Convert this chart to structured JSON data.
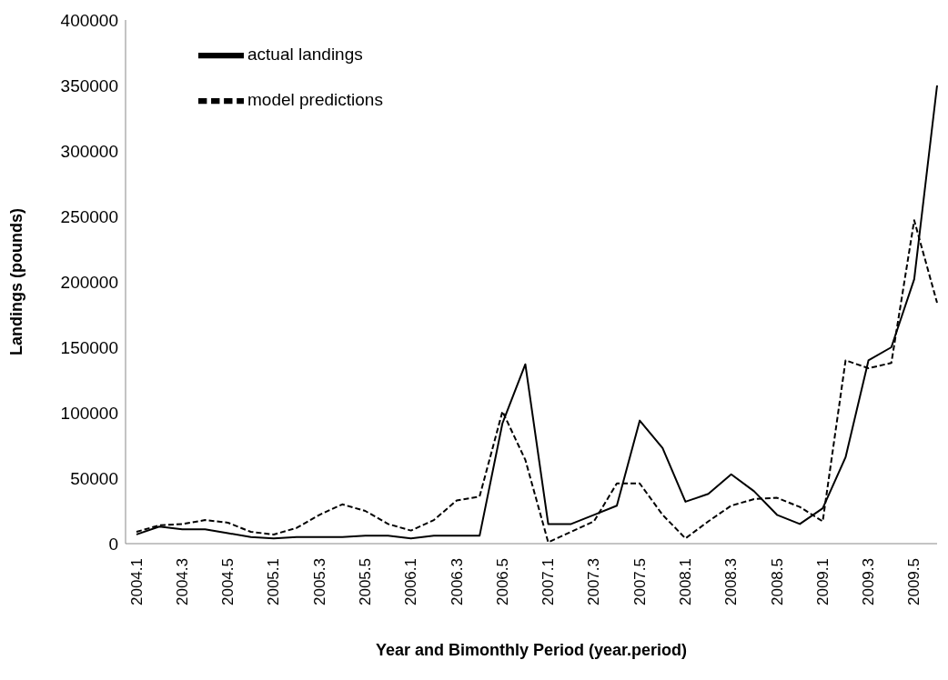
{
  "chart_data": {
    "type": "line",
    "xlabel": "Year and Bimonthly Period (year.period)",
    "ylabel": "Landings (pounds)",
    "categories": [
      "2004.1",
      null,
      "2004.3",
      null,
      "2004.5",
      null,
      "2005.1",
      null,
      "2005.3",
      null,
      "2005.5",
      null,
      "2006.1",
      null,
      "2006.3",
      null,
      "2006.5",
      null,
      "2007.1",
      null,
      "2007.3",
      null,
      "2007.5",
      null,
      "2008.1",
      null,
      "2008.3",
      null,
      "2008.5",
      null,
      "2009.1",
      null,
      "2009.3",
      null,
      "2009.5",
      null
    ],
    "series": [
      {
        "name": "actual landings",
        "color": "#000000",
        "line_style": "solid",
        "values": [
          7000,
          13000,
          11000,
          11000,
          8000,
          5000,
          4000,
          5000,
          5000,
          5000,
          6000,
          6000,
          4000,
          6000,
          6000,
          6000,
          92000,
          137000,
          15000,
          15000,
          22000,
          29000,
          94000,
          73000,
          32000,
          38000,
          53000,
          40000,
          22000,
          15000,
          27000,
          66000,
          140000,
          150000,
          202000,
          350000
        ]
      },
      {
        "name": "model predictions",
        "color": "#000000",
        "line_style": "dashed",
        "values": [
          9000,
          14000,
          15000,
          18000,
          16000,
          9000,
          7000,
          12000,
          22000,
          30000,
          25000,
          15000,
          10000,
          18000,
          33000,
          36000,
          101000,
          64000,
          1000,
          9000,
          17000,
          46000,
          46000,
          22000,
          4000,
          17000,
          29000,
          34000,
          35000,
          28000,
          17000,
          140000,
          134000,
          138000,
          247000,
          184000
        ]
      }
    ],
    "ylim": [
      0,
      400000
    ],
    "yticks": [
      0,
      50000,
      100000,
      150000,
      200000,
      250000,
      300000,
      350000,
      400000
    ],
    "grid": false,
    "legend": "top left",
    "marker": "none"
  }
}
